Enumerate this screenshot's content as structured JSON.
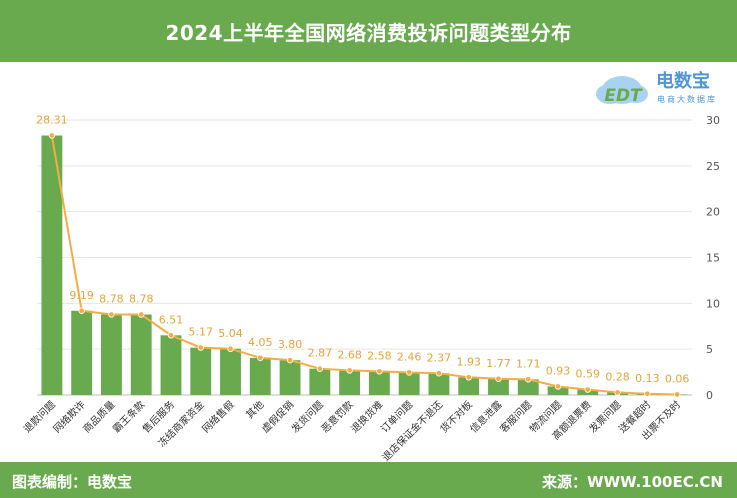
{
  "header": {
    "title": "2024上半年全国网络消费投诉问题类型分布"
  },
  "footer": {
    "left": "图表编制：电数宝",
    "right": "来源：WWW.100EC.CN"
  },
  "logo": {
    "name": "电数宝",
    "sub": "电商大数据库",
    "mark": "EDT"
  },
  "colors": {
    "bar": "#6aaa4f",
    "line": "#f3ad45",
    "header": "#6aaa4f"
  },
  "chart_data": {
    "type": "bar",
    "categories": [
      "退款问题",
      "网络欺诈",
      "商品质量",
      "霸王条款",
      "售后服务",
      "冻结商家资金",
      "网络售假",
      "其他",
      "虚假促销",
      "发货问题",
      "恶意罚款",
      "退换货难",
      "订单问题",
      "退店保证金不退还",
      "货不对板",
      "信息泄露",
      "客服问题",
      "物流问题",
      "高额退票费",
      "发票问题",
      "送餐超时",
      "出票不及时"
    ],
    "values": [
      28.31,
      9.19,
      8.78,
      8.78,
      6.51,
      5.17,
      5.04,
      4.05,
      3.8,
      2.87,
      2.68,
      2.58,
      2.46,
      2.37,
      1.93,
      1.77,
      1.71,
      0.93,
      0.59,
      0.28,
      0.13,
      0.06
    ],
    "value_labels": [
      "28.31",
      "9.19",
      "8.78",
      "8.78",
      "6.51",
      "5.17",
      "5.04",
      "4.05",
      "3.80",
      "2.87",
      "2.68",
      "2.58",
      "2.46",
      "2.37",
      "1.93",
      "1.77",
      "1.71",
      "0.93",
      "0.59",
      "0.28",
      "0.13",
      "0.06"
    ],
    "ylim": [
      0,
      30
    ],
    "yticks": [
      0,
      5,
      10,
      15,
      20,
      25,
      30
    ],
    "y_axis_side": "right",
    "grid": true,
    "line_overlay": true
  }
}
